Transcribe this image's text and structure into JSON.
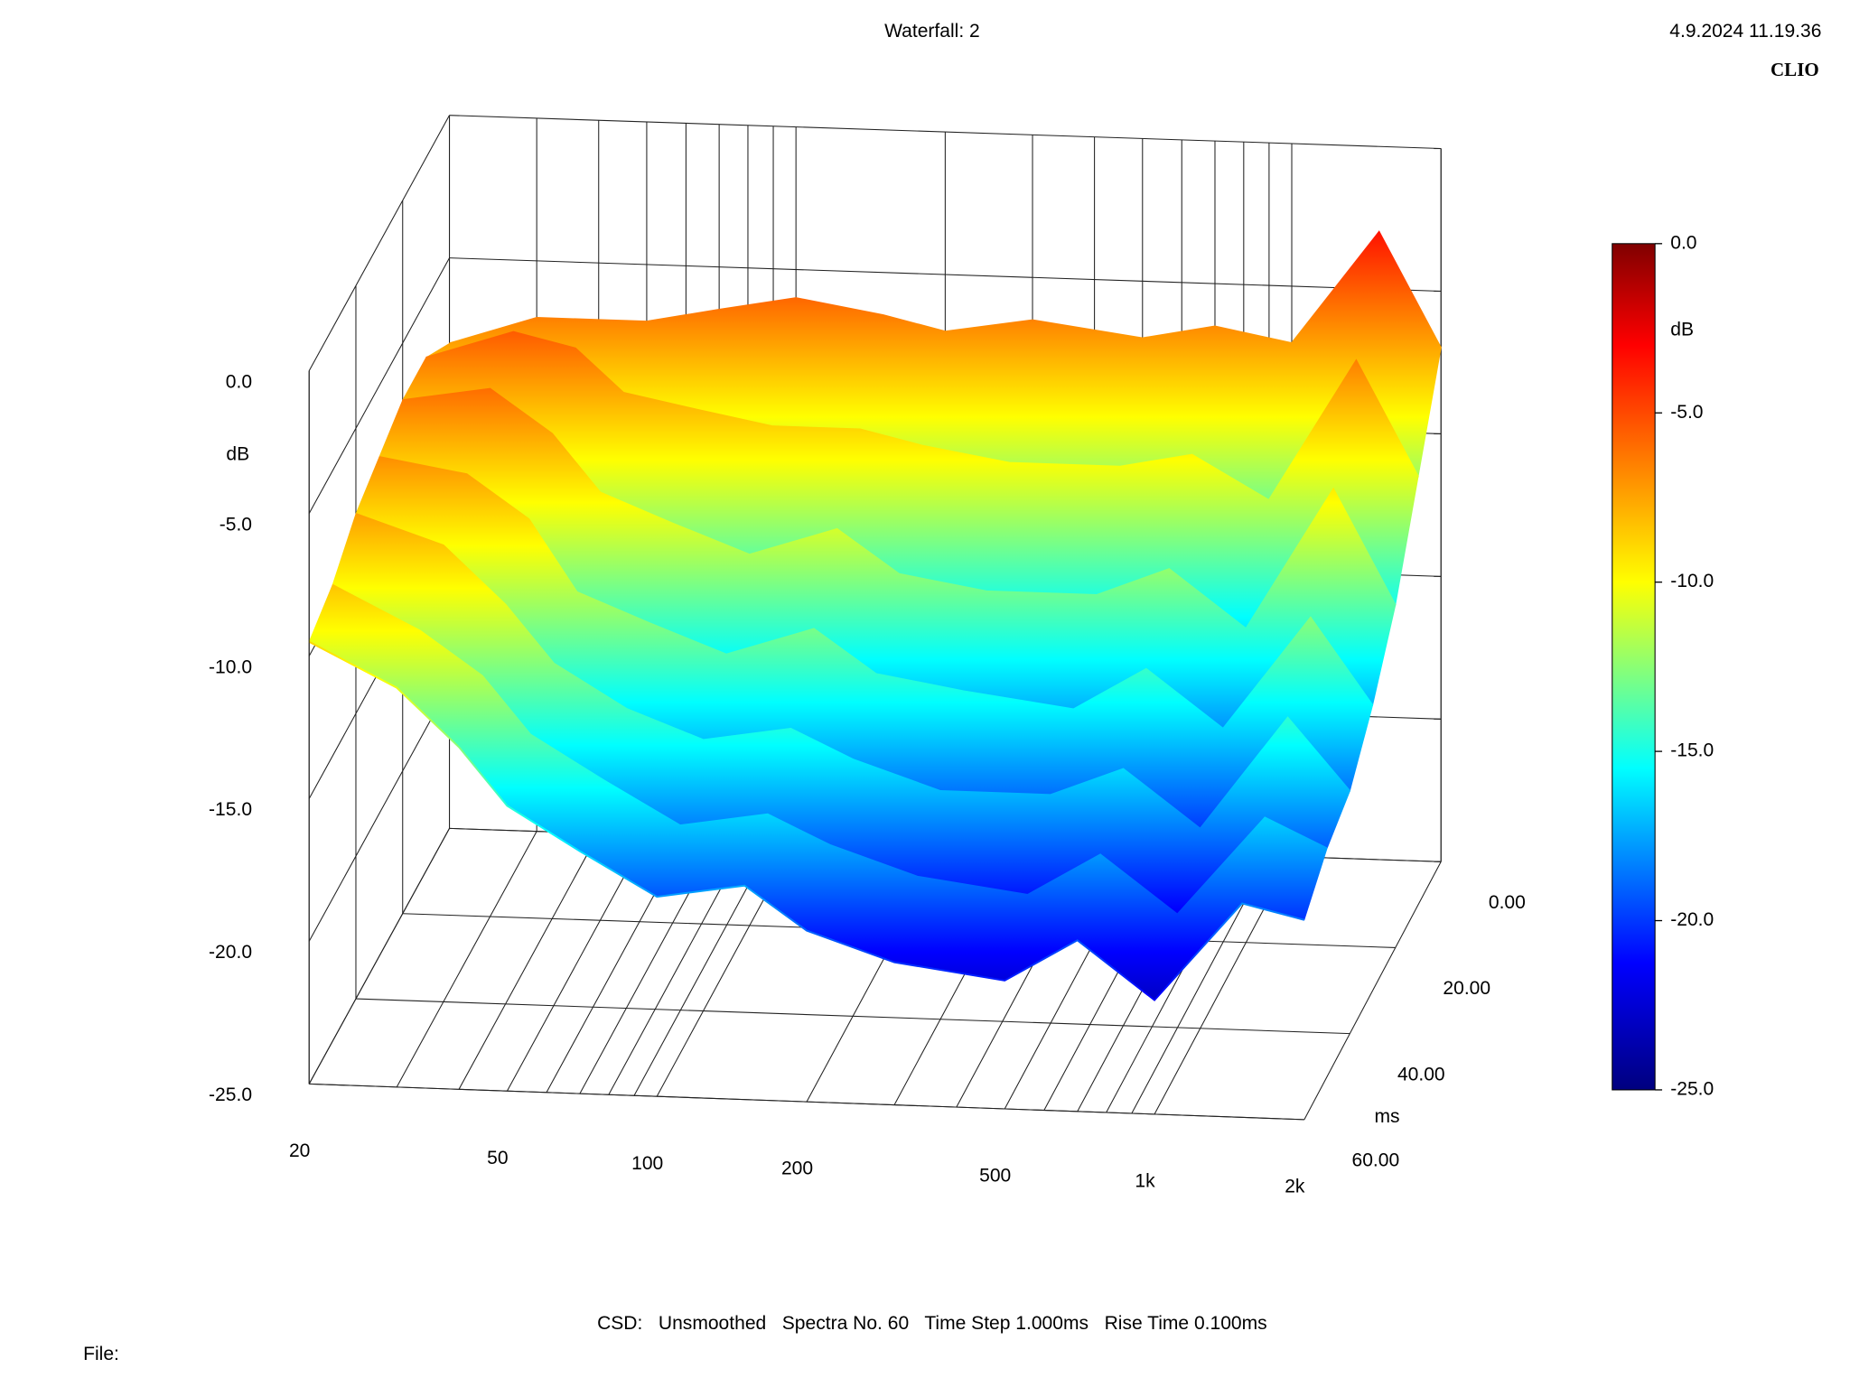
{
  "title": "Waterfall: 2",
  "timestamp": "4.9.2024 11.19.36",
  "brand": "CLIO",
  "footer": "CSD:   Unsmoothed   Spectra No. 60   Time Step 1.000ms   Rise Time 0.100ms",
  "file_label": "File:",
  "chart_data": {
    "type": "waterfall",
    "ylabel": "dB",
    "zlabel": "ms",
    "colorbar_label": "dB",
    "xscale": "log",
    "xlim": [
      20,
      2000
    ],
    "xticks": [
      20,
      50,
      100,
      200,
      500,
      {
        "value": 1000,
        "label": "1k"
      },
      {
        "value": 2000,
        "label": "2k"
      }
    ],
    "xminor_ticks": [
      30,
      40,
      60,
      70,
      80,
      90,
      300,
      400,
      600,
      700,
      800,
      900
    ],
    "ylim": [
      -25,
      0
    ],
    "yticks": [
      {
        "value": 0,
        "label": "0.0"
      },
      {
        "value": -5,
        "label": "-5.0"
      },
      {
        "value": -10,
        "label": "-10.0"
      },
      {
        "value": -15,
        "label": "-15.0"
      },
      {
        "value": -20,
        "label": "-20.0"
      },
      {
        "value": -25,
        "label": "-25.0"
      }
    ],
    "zlim": [
      0,
      60
    ],
    "zticks": [
      {
        "value": 0,
        "label": "0.00"
      },
      {
        "value": 20,
        "label": "20.00"
      },
      {
        "value": 40,
        "label": "40.00"
      },
      {
        "value": 60,
        "label": "60.00"
      }
    ],
    "frequencies": [
      20,
      30,
      40,
      50,
      70,
      100,
      150,
      200,
      300,
      500,
      700,
      1000,
      1500,
      2000
    ],
    "slices": [
      {
        "time": 0,
        "values": [
          -8,
          -7,
          -7,
          -7,
          -6.5,
          -6,
          -6.5,
          -7,
          -6.5,
          -7,
          -6.5,
          -7,
          -3,
          -7
        ]
      },
      {
        "time": 10,
        "values": [
          -7,
          -6,
          -6.5,
          -8,
          -8.5,
          -9,
          -9,
          -9.5,
          -10,
          -10,
          -9.5,
          -11,
          -6,
          -10
        ]
      },
      {
        "time": 20,
        "values": [
          -7,
          -6.5,
          -8,
          -10,
          -11,
          -12,
          -11,
          -12.5,
          -13,
          -13,
          -12,
          -14,
          -9,
          -13
        ]
      },
      {
        "time": 30,
        "values": [
          -7.5,
          -8,
          -9.5,
          -12,
          -13,
          -14,
          -13,
          -14.5,
          -15,
          -15.5,
          -14,
          -16,
          -12,
          -15
        ]
      },
      {
        "time": 40,
        "values": [
          -8,
          -9,
          -11,
          -13,
          -14.5,
          -15.5,
          -15,
          -16,
          -17,
          -17,
          -16,
          -18,
          -14,
          -16.5
        ]
      },
      {
        "time": 50,
        "values": [
          -9,
          -10.5,
          -12,
          -14,
          -15.5,
          -17,
          -16.5,
          -17.5,
          -18.5,
          -19,
          -17.5,
          -19.5,
          -16,
          -17
        ]
      },
      {
        "time": 60,
        "values": [
          -9.5,
          -11,
          -13,
          -15,
          -16.5,
          -18,
          -17.5,
          -19,
          -20,
          -20.5,
          -19,
          -21,
          -17.5,
          -18
        ]
      }
    ],
    "colorscale": [
      {
        "offset": 0,
        "color": "#800000"
      },
      {
        "offset": 0.12,
        "color": "#ff0000"
      },
      {
        "offset": 0.4,
        "color": "#ffff00"
      },
      {
        "offset": 0.62,
        "color": "#00ffff"
      },
      {
        "offset": 0.85,
        "color": "#0000ff"
      },
      {
        "offset": 1,
        "color": "#00007f"
      }
    ]
  }
}
